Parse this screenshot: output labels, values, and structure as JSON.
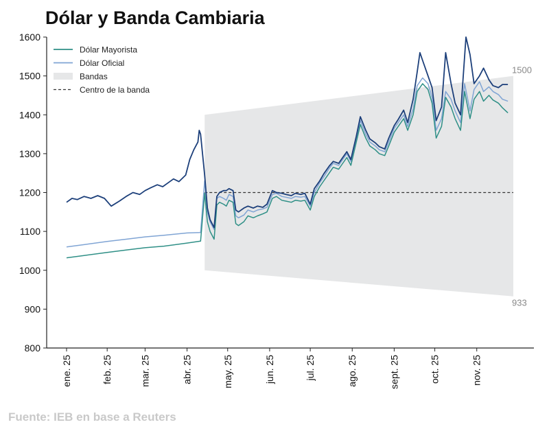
{
  "chart_data": {
    "type": "line",
    "title": "Dólar y Banda Cambiaria",
    "source": "Fuente: IEB en base a Reuters",
    "ylim": [
      800,
      1600
    ],
    "yticks": [
      800,
      900,
      1000,
      1100,
      1200,
      1300,
      1400,
      1500,
      1600
    ],
    "xticks": [
      "ene. 25",
      "feb. 25",
      "mar. 25",
      "abr. 25",
      "may. 25",
      "jun. 25",
      "jul. 25",
      "ago. 25",
      "sept. 25",
      "oct. 25",
      "nov. 25"
    ],
    "legend": {
      "placement": "top-left",
      "entries": [
        "Dólar Mayorista",
        "Dólar Oficial",
        "Bandas",
        "Centro de la banda"
      ]
    },
    "grid": false,
    "colors": {
      "mayorista": "#2e8f86",
      "oficial": "#7fa4d4",
      "blue_series": "#1c3f7a",
      "bandas": "#e6e7e8",
      "centro": "#333333"
    },
    "bands": {
      "upper": [
        [
          "2025-04-14",
          1400
        ],
        [
          "2025-11-28",
          1500
        ]
      ],
      "lower": [
        [
          "2025-04-14",
          1000
        ],
        [
          "2025-11-28",
          933
        ]
      ],
      "upper_end_label": "1500",
      "lower_end_label": "933"
    },
    "center_band": {
      "value": 1200,
      "x_start": "2025-04-14",
      "x_end": "2025-11-28"
    },
    "series": [
      {
        "name": "Dólar Mayorista",
        "color": "#2e8f86",
        "points": [
          [
            "2025-01-02",
            1032
          ],
          [
            "2025-01-15",
            1038
          ],
          [
            "2025-02-01",
            1046
          ],
          [
            "2025-02-15",
            1052
          ],
          [
            "2025-03-01",
            1058
          ],
          [
            "2025-03-15",
            1062
          ],
          [
            "2025-04-01",
            1070
          ],
          [
            "2025-04-11",
            1075
          ],
          [
            "2025-04-14",
            1198
          ],
          [
            "2025-04-16",
            1125
          ],
          [
            "2025-04-18",
            1100
          ],
          [
            "2025-04-21",
            1080
          ],
          [
            "2025-04-23",
            1168
          ],
          [
            "2025-04-25",
            1175
          ],
          [
            "2025-04-28",
            1170
          ],
          [
            "2025-04-30",
            1165
          ],
          [
            "2025-05-02",
            1180
          ],
          [
            "2025-05-05",
            1175
          ],
          [
            "2025-05-07",
            1120
          ],
          [
            "2025-05-09",
            1115
          ],
          [
            "2025-05-13",
            1125
          ],
          [
            "2025-05-16",
            1140
          ],
          [
            "2025-05-20",
            1135
          ],
          [
            "2025-05-23",
            1140
          ],
          [
            "2025-05-27",
            1145
          ],
          [
            "2025-05-30",
            1150
          ],
          [
            "2025-06-03",
            1185
          ],
          [
            "2025-06-06",
            1190
          ],
          [
            "2025-06-10",
            1180
          ],
          [
            "2025-06-13",
            1178
          ],
          [
            "2025-06-17",
            1175
          ],
          [
            "2025-06-20",
            1180
          ],
          [
            "2025-06-24",
            1178
          ],
          [
            "2025-06-27",
            1180
          ],
          [
            "2025-07-01",
            1155
          ],
          [
            "2025-07-04",
            1190
          ],
          [
            "2025-07-08",
            1215
          ],
          [
            "2025-07-11",
            1230
          ],
          [
            "2025-07-15",
            1250
          ],
          [
            "2025-07-18",
            1265
          ],
          [
            "2025-07-22",
            1260
          ],
          [
            "2025-07-25",
            1275
          ],
          [
            "2025-07-28",
            1290
          ],
          [
            "2025-07-31",
            1270
          ],
          [
            "2025-08-04",
            1330
          ],
          [
            "2025-08-07",
            1375
          ],
          [
            "2025-08-11",
            1340
          ],
          [
            "2025-08-14",
            1320
          ],
          [
            "2025-08-18",
            1310
          ],
          [
            "2025-08-21",
            1300
          ],
          [
            "2025-08-25",
            1295
          ],
          [
            "2025-08-28",
            1320
          ],
          [
            "2025-09-01",
            1355
          ],
          [
            "2025-09-04",
            1370
          ],
          [
            "2025-09-08",
            1390
          ],
          [
            "2025-09-11",
            1360
          ],
          [
            "2025-09-15",
            1400
          ],
          [
            "2025-09-18",
            1460
          ],
          [
            "2025-09-22",
            1480
          ],
          [
            "2025-09-26",
            1465
          ],
          [
            "2025-09-29",
            1430
          ],
          [
            "2025-10-02",
            1340
          ],
          [
            "2025-10-06",
            1370
          ],
          [
            "2025-10-09",
            1445
          ],
          [
            "2025-10-13",
            1420
          ],
          [
            "2025-10-16",
            1390
          ],
          [
            "2025-10-20",
            1360
          ],
          [
            "2025-10-23",
            1460
          ],
          [
            "2025-10-27",
            1390
          ],
          [
            "2025-10-30",
            1440
          ],
          [
            "2025-11-03",
            1460
          ],
          [
            "2025-11-06",
            1435
          ],
          [
            "2025-11-10",
            1450
          ],
          [
            "2025-11-13",
            1438
          ],
          [
            "2025-11-17",
            1430
          ],
          [
            "2025-11-20",
            1418
          ],
          [
            "2025-11-24",
            1405
          ]
        ]
      },
      {
        "name": "Dólar Oficial",
        "color": "#7fa4d4",
        "points": [
          [
            "2025-01-02",
            1060
          ],
          [
            "2025-01-15",
            1066
          ],
          [
            "2025-02-01",
            1074
          ],
          [
            "2025-02-15",
            1080
          ],
          [
            "2025-03-01",
            1086
          ],
          [
            "2025-03-15",
            1090
          ],
          [
            "2025-04-01",
            1096
          ],
          [
            "2025-04-11",
            1097
          ],
          [
            "2025-04-14",
            1230
          ],
          [
            "2025-04-16",
            1150
          ],
          [
            "2025-04-18",
            1125
          ],
          [
            "2025-04-21",
            1105
          ],
          [
            "2025-04-23",
            1185
          ],
          [
            "2025-04-25",
            1190
          ],
          [
            "2025-04-28",
            1185
          ],
          [
            "2025-04-30",
            1180
          ],
          [
            "2025-05-02",
            1195
          ],
          [
            "2025-05-05",
            1190
          ],
          [
            "2025-05-07",
            1140
          ],
          [
            "2025-05-09",
            1135
          ],
          [
            "2025-05-13",
            1142
          ],
          [
            "2025-05-16",
            1155
          ],
          [
            "2025-05-20",
            1150
          ],
          [
            "2025-05-23",
            1155
          ],
          [
            "2025-05-27",
            1158
          ],
          [
            "2025-05-30",
            1162
          ],
          [
            "2025-06-03",
            1195
          ],
          [
            "2025-06-06",
            1198
          ],
          [
            "2025-06-10",
            1190
          ],
          [
            "2025-06-13",
            1188
          ],
          [
            "2025-06-17",
            1185
          ],
          [
            "2025-06-20",
            1190
          ],
          [
            "2025-06-24",
            1188
          ],
          [
            "2025-06-27",
            1190
          ],
          [
            "2025-07-01",
            1165
          ],
          [
            "2025-07-04",
            1200
          ],
          [
            "2025-07-08",
            1225
          ],
          [
            "2025-07-11",
            1240
          ],
          [
            "2025-07-15",
            1262
          ],
          [
            "2025-07-18",
            1275
          ],
          [
            "2025-07-22",
            1270
          ],
          [
            "2025-07-25",
            1285
          ],
          [
            "2025-07-28",
            1300
          ],
          [
            "2025-07-31",
            1280
          ],
          [
            "2025-08-04",
            1340
          ],
          [
            "2025-08-07",
            1385
          ],
          [
            "2025-08-11",
            1350
          ],
          [
            "2025-08-14",
            1330
          ],
          [
            "2025-08-18",
            1320
          ],
          [
            "2025-08-21",
            1310
          ],
          [
            "2025-08-25",
            1305
          ],
          [
            "2025-08-28",
            1330
          ],
          [
            "2025-09-01",
            1365
          ],
          [
            "2025-09-04",
            1380
          ],
          [
            "2025-09-08",
            1400
          ],
          [
            "2025-09-11",
            1370
          ],
          [
            "2025-09-15",
            1415
          ],
          [
            "2025-09-18",
            1475
          ],
          [
            "2025-09-22",
            1495
          ],
          [
            "2025-09-26",
            1480
          ],
          [
            "2025-09-29",
            1445
          ],
          [
            "2025-10-02",
            1360
          ],
          [
            "2025-10-06",
            1390
          ],
          [
            "2025-10-09",
            1460
          ],
          [
            "2025-10-13",
            1440
          ],
          [
            "2025-10-16",
            1410
          ],
          [
            "2025-10-20",
            1380
          ],
          [
            "2025-10-23",
            1480
          ],
          [
            "2025-10-27",
            1410
          ],
          [
            "2025-10-30",
            1465
          ],
          [
            "2025-11-03",
            1485
          ],
          [
            "2025-11-06",
            1460
          ],
          [
            "2025-11-10",
            1472
          ],
          [
            "2025-11-13",
            1460
          ],
          [
            "2025-11-17",
            1452
          ],
          [
            "2025-11-20",
            1440
          ],
          [
            "2025-11-24",
            1435
          ]
        ]
      },
      {
        "color": "#1c3f7a",
        "points": [
          [
            "2025-01-02",
            1175
          ],
          [
            "2025-01-06",
            1185
          ],
          [
            "2025-01-10",
            1182
          ],
          [
            "2025-01-15",
            1190
          ],
          [
            "2025-01-20",
            1185
          ],
          [
            "2025-01-25",
            1192
          ],
          [
            "2025-01-30",
            1185
          ],
          [
            "2025-02-04",
            1165
          ],
          [
            "2025-02-10",
            1178
          ],
          [
            "2025-02-15",
            1190
          ],
          [
            "2025-02-20",
            1200
          ],
          [
            "2025-02-25",
            1195
          ],
          [
            "2025-03-01",
            1205
          ],
          [
            "2025-03-05",
            1212
          ],
          [
            "2025-03-10",
            1220
          ],
          [
            "2025-03-14",
            1215
          ],
          [
            "2025-03-18",
            1225
          ],
          [
            "2025-03-22",
            1235
          ],
          [
            "2025-03-26",
            1228
          ],
          [
            "2025-03-31",
            1245
          ],
          [
            "2025-04-03",
            1285
          ],
          [
            "2025-04-06",
            1310
          ],
          [
            "2025-04-09",
            1330
          ],
          [
            "2025-04-10",
            1360
          ],
          [
            "2025-04-11",
            1350
          ],
          [
            "2025-04-14",
            1245
          ],
          [
            "2025-04-16",
            1160
          ],
          [
            "2025-04-18",
            1130
          ],
          [
            "2025-04-21",
            1110
          ],
          [
            "2025-04-23",
            1190
          ],
          [
            "2025-04-25",
            1200
          ],
          [
            "2025-04-28",
            1205
          ],
          [
            "2025-04-30",
            1205
          ],
          [
            "2025-05-02",
            1210
          ],
          [
            "2025-05-05",
            1205
          ],
          [
            "2025-05-07",
            1155
          ],
          [
            "2025-05-09",
            1150
          ],
          [
            "2025-05-13",
            1160
          ],
          [
            "2025-05-16",
            1165
          ],
          [
            "2025-05-20",
            1160
          ],
          [
            "2025-05-23",
            1165
          ],
          [
            "2025-05-27",
            1162
          ],
          [
            "2025-05-30",
            1170
          ],
          [
            "2025-06-03",
            1205
          ],
          [
            "2025-06-06",
            1200
          ],
          [
            "2025-06-10",
            1198
          ],
          [
            "2025-06-13",
            1195
          ],
          [
            "2025-06-17",
            1192
          ],
          [
            "2025-06-20",
            1198
          ],
          [
            "2025-06-24",
            1195
          ],
          [
            "2025-06-27",
            1198
          ],
          [
            "2025-07-01",
            1170
          ],
          [
            "2025-07-04",
            1210
          ],
          [
            "2025-07-08",
            1230
          ],
          [
            "2025-07-11",
            1248
          ],
          [
            "2025-07-15",
            1268
          ],
          [
            "2025-07-18",
            1280
          ],
          [
            "2025-07-22",
            1275
          ],
          [
            "2025-07-25",
            1290
          ],
          [
            "2025-07-28",
            1305
          ],
          [
            "2025-07-31",
            1285
          ],
          [
            "2025-08-04",
            1345
          ],
          [
            "2025-08-07",
            1395
          ],
          [
            "2025-08-11",
            1360
          ],
          [
            "2025-08-14",
            1338
          ],
          [
            "2025-08-18",
            1328
          ],
          [
            "2025-08-21",
            1318
          ],
          [
            "2025-08-25",
            1312
          ],
          [
            "2025-08-28",
            1340
          ],
          [
            "2025-09-01",
            1372
          ],
          [
            "2025-09-04",
            1388
          ],
          [
            "2025-09-08",
            1412
          ],
          [
            "2025-09-11",
            1380
          ],
          [
            "2025-09-15",
            1440
          ],
          [
            "2025-09-18",
            1510
          ],
          [
            "2025-09-20",
            1560
          ],
          [
            "2025-09-22",
            1540
          ],
          [
            "2025-09-26",
            1500
          ],
          [
            "2025-09-29",
            1470
          ],
          [
            "2025-10-02",
            1385
          ],
          [
            "2025-10-06",
            1420
          ],
          [
            "2025-10-09",
            1560
          ],
          [
            "2025-10-13",
            1480
          ],
          [
            "2025-10-16",
            1430
          ],
          [
            "2025-10-20",
            1400
          ],
          [
            "2025-10-24",
            1600
          ],
          [
            "2025-10-27",
            1555
          ],
          [
            "2025-10-30",
            1480
          ],
          [
            "2025-11-03",
            1500
          ],
          [
            "2025-11-06",
            1520
          ],
          [
            "2025-11-10",
            1490
          ],
          [
            "2025-11-13",
            1475
          ],
          [
            "2025-11-17",
            1470
          ],
          [
            "2025-11-20",
            1478
          ],
          [
            "2025-11-24",
            1478
          ]
        ]
      }
    ]
  }
}
